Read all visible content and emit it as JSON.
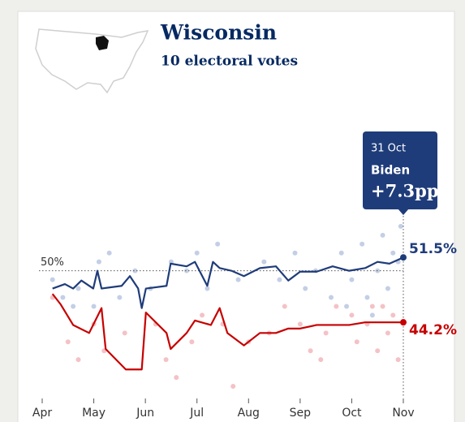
{
  "chart_data": {
    "type": "line",
    "title": "Wisconsin",
    "subtitle": "10 electoral votes",
    "xlim": [
      4,
      11
    ],
    "xticks": [
      {
        "value": 4,
        "label": "Apr"
      },
      {
        "value": 5,
        "label": "May"
      },
      {
        "value": 6,
        "label": "Jun"
      },
      {
        "value": 7,
        "label": "Jul"
      },
      {
        "value": 8,
        "label": "Aug"
      },
      {
        "value": 9,
        "label": "Sep"
      },
      {
        "value": 10,
        "label": "Oct"
      },
      {
        "value": 11,
        "label": "Nov"
      }
    ],
    "ylim": [
      36,
      58
    ],
    "yticks": [
      {
        "value": 50,
        "label": "50%"
      }
    ],
    "series": [
      {
        "color": "#1f3c7a",
        "end_label": "51.5%",
        "x": [
          4.2,
          4.44,
          4.6,
          4.76,
          4.99,
          5.07,
          5.15,
          5.54,
          5.7,
          5.86,
          5.93,
          6.01,
          6.41,
          6.49,
          6.8,
          6.96,
          7.2,
          7.31,
          7.44,
          7.67,
          7.91,
          8.22,
          8.53,
          8.77,
          9.0,
          9.32,
          9.63,
          9.95,
          10.26,
          10.5,
          10.73,
          11.0
        ],
        "values": [
          48.0,
          48.5,
          48.0,
          48.9,
          48.0,
          50.0,
          48.0,
          48.3,
          49.4,
          48.0,
          45.8,
          48.0,
          48.3,
          50.8,
          50.5,
          51.0,
          48.3,
          51.0,
          50.3,
          50.0,
          49.4,
          50.3,
          50.5,
          48.9,
          49.9,
          49.9,
          50.5,
          50.0,
          50.3,
          51.0,
          50.8,
          51.5
        ]
      },
      {
        "color": "#c70000",
        "end_label": "44.2%",
        "x": [
          4.2,
          4.36,
          4.6,
          4.91,
          5.15,
          5.23,
          5.62,
          5.93,
          6.01,
          6.41,
          6.49,
          6.8,
          6.96,
          7.27,
          7.44,
          7.59,
          7.91,
          8.22,
          8.53,
          8.77,
          9.0,
          9.32,
          9.63,
          9.95,
          10.26,
          10.5,
          10.73,
          11.0
        ],
        "values": [
          47.4,
          46.2,
          43.9,
          43.0,
          45.8,
          41.2,
          38.9,
          38.9,
          45.3,
          43.0,
          41.2,
          43.0,
          44.4,
          43.9,
          45.8,
          43.0,
          41.6,
          43.0,
          43.0,
          43.5,
          43.5,
          43.9,
          43.9,
          43.9,
          44.2,
          44.2,
          44.2,
          44.2
        ]
      }
    ],
    "polls": [
      {
        "color": "#c3cfe6",
        "x": [
          4.2,
          4.4,
          4.6,
          4.7,
          5.1,
          5.0,
          5.5,
          5.8,
          6.1,
          6.5,
          6.8,
          7.0,
          7.2,
          7.8,
          8.3,
          8.6,
          8.9,
          9.1,
          9.3,
          9.6,
          9.8,
          10.0,
          10.2,
          10.3,
          10.5,
          10.6,
          10.7,
          10.8,
          10.9,
          10.95,
          9.9,
          10.4,
          7.4,
          5.3
        ],
        "values": [
          49,
          47,
          46,
          48,
          51,
          46,
          47,
          50,
          48,
          51,
          50,
          52,
          48,
          49,
          51,
          49,
          52,
          48,
          50,
          47,
          52,
          49,
          53,
          47,
          50,
          54,
          48,
          52,
          51,
          55,
          46,
          45,
          53,
          52
        ]
      },
      {
        "color": "#f4c2c6",
        "x": [
          4.2,
          4.5,
          4.7,
          5.0,
          5.2,
          5.6,
          6.2,
          6.4,
          6.9,
          7.1,
          7.5,
          8.0,
          8.4,
          8.7,
          9.0,
          9.2,
          9.5,
          9.7,
          10.0,
          10.1,
          10.3,
          10.5,
          10.6,
          10.7,
          10.8,
          10.9,
          7.7,
          6.6,
          9.4,
          10.4
        ],
        "values": [
          47,
          42,
          40,
          44,
          41,
          43,
          44,
          40,
          42,
          45,
          44,
          42,
          43,
          46,
          44,
          41,
          43,
          46,
          45,
          42,
          44,
          41,
          46,
          43,
          45,
          40,
          37,
          38,
          40,
          46
        ]
      }
    ],
    "annotation": {
      "date": "31 Oct",
      "candidate": "Biden",
      "lead": "+7.3pp"
    }
  }
}
